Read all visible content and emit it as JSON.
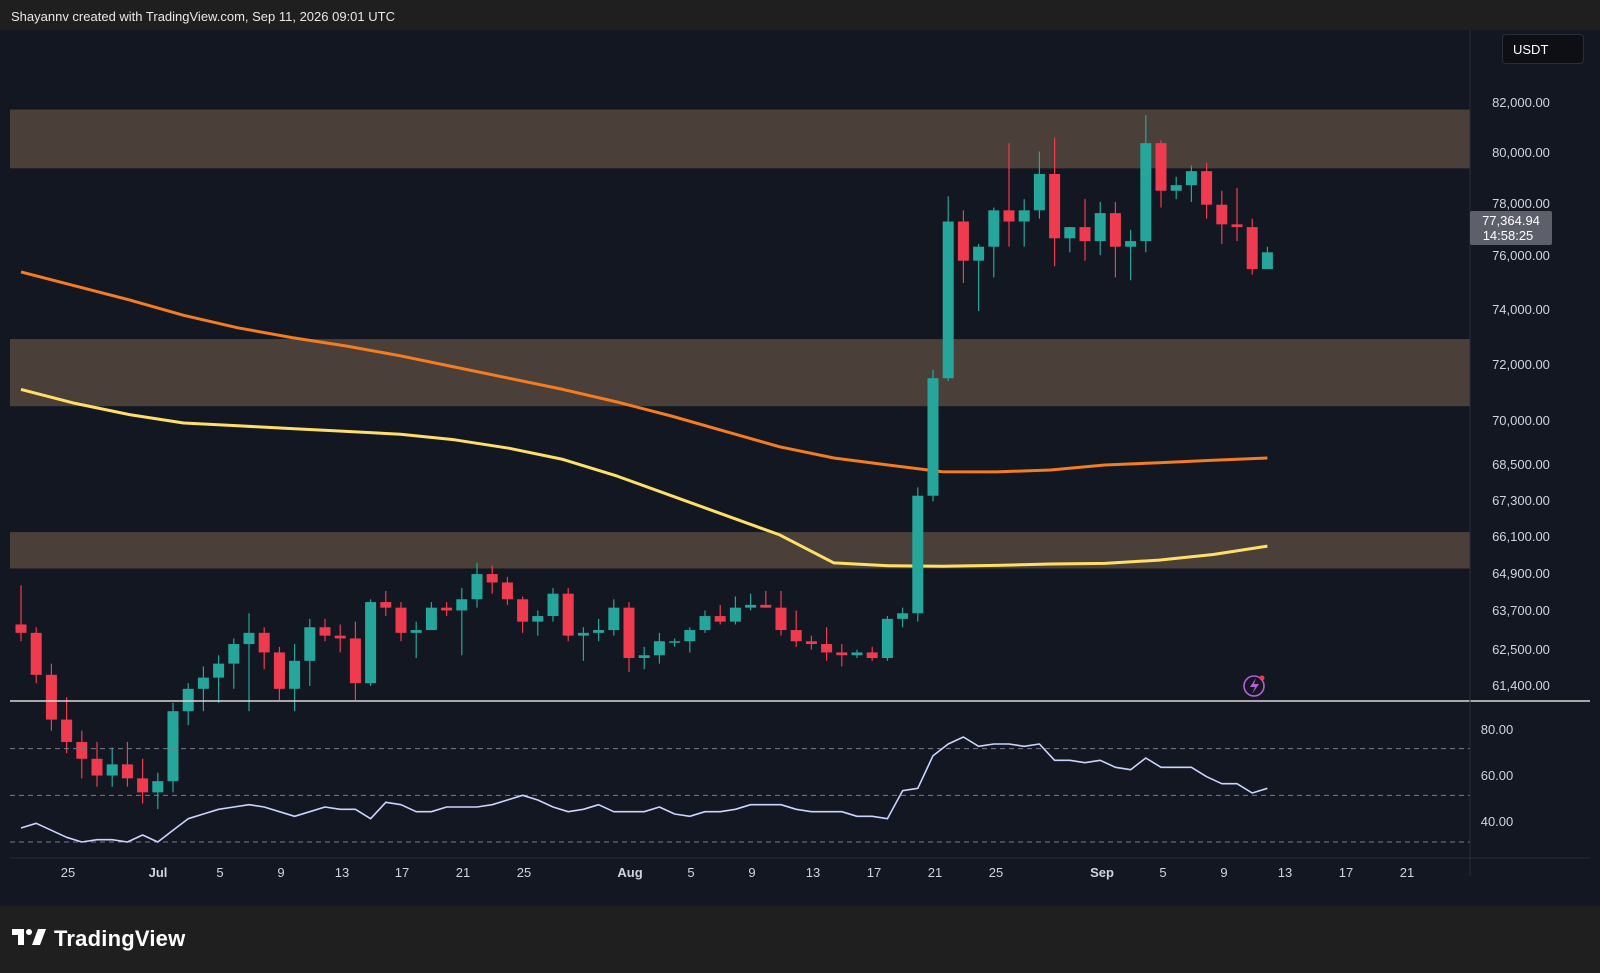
{
  "attribution": "Shayannv created with TradingView.com, Sep 11, 2026 09:01 UTC",
  "brand": "TradingView",
  "currency_label": "USDT",
  "last_price_label": "77,364.94",
  "countdown_label": "14:58:25",
  "colors": {
    "up": "#26a69a",
    "down": "#ef3b4f",
    "ma_orange": "#f57c1f",
    "ma_yellow": "#ffe066",
    "zone": "#4a4039",
    "rsi_line": "#c9d4ff",
    "background": "#131722"
  },
  "icons": [
    "tradingview-logo-icon",
    "lightning-alert-icon"
  ],
  "chart_data": [
    {
      "type": "candlestick",
      "title": "",
      "price_axis_ticks": [
        "82,000.00",
        "80,000.00",
        "78,000.00",
        "76,000.00",
        "74,000.00",
        "72,000.00",
        "70,000.00",
        "68,500.00",
        "67,300.00",
        "66,100.00",
        "64,900.00",
        "63,700.00",
        "62,500.00",
        "61,400.00"
      ],
      "time_axis_ticks": [
        "25",
        "Jul",
        "5",
        "9",
        "13",
        "17",
        "21",
        "25",
        "Aug",
        "5",
        "9",
        "13",
        "17",
        "21",
        "25",
        "Sep",
        "5",
        "9",
        "13",
        "17",
        "21"
      ],
      "candles": [
        {
          "o": 64100,
          "h": 65500,
          "l": 63500,
          "c": 63800
        },
        {
          "o": 63800,
          "h": 64000,
          "l": 62000,
          "c": 62300
        },
        {
          "o": 62300,
          "h": 62700,
          "l": 60300,
          "c": 60700
        },
        {
          "o": 60700,
          "h": 61500,
          "l": 59500,
          "c": 59900
        },
        {
          "o": 59900,
          "h": 60300,
          "l": 58600,
          "c": 59300
        },
        {
          "o": 59300,
          "h": 59900,
          "l": 58300,
          "c": 58700
        },
        {
          "o": 58700,
          "h": 59700,
          "l": 58300,
          "c": 59100
        },
        {
          "o": 59100,
          "h": 59900,
          "l": 58300,
          "c": 58600
        },
        {
          "o": 58600,
          "h": 59300,
          "l": 57700,
          "c": 58100
        },
        {
          "o": 58100,
          "h": 58800,
          "l": 57500,
          "c": 58500
        },
        {
          "o": 58500,
          "h": 61300,
          "l": 58100,
          "c": 61000
        },
        {
          "o": 61000,
          "h": 62000,
          "l": 60500,
          "c": 61800
        },
        {
          "o": 61800,
          "h": 62600,
          "l": 61000,
          "c": 62200
        },
        {
          "o": 62200,
          "h": 63000,
          "l": 61300,
          "c": 62700
        },
        {
          "o": 62700,
          "h": 63600,
          "l": 61800,
          "c": 63400
        },
        {
          "o": 63400,
          "h": 64500,
          "l": 61000,
          "c": 63800
        },
        {
          "o": 63800,
          "h": 64000,
          "l": 62500,
          "c": 63100
        },
        {
          "o": 63100,
          "h": 63300,
          "l": 61400,
          "c": 61800
        },
        {
          "o": 61800,
          "h": 63400,
          "l": 61000,
          "c": 62800
        },
        {
          "o": 62800,
          "h": 64300,
          "l": 61900,
          "c": 64000
        },
        {
          "o": 64000,
          "h": 64300,
          "l": 63500,
          "c": 63700
        },
        {
          "o": 63700,
          "h": 64100,
          "l": 63100,
          "c": 63600
        },
        {
          "o": 63600,
          "h": 64200,
          "l": 61400,
          "c": 62000
        },
        {
          "o": 62000,
          "h": 65000,
          "l": 61900,
          "c": 64900
        },
        {
          "o": 64900,
          "h": 65300,
          "l": 64400,
          "c": 64700
        },
        {
          "o": 64700,
          "h": 64900,
          "l": 63500,
          "c": 63800
        },
        {
          "o": 63800,
          "h": 64200,
          "l": 62900,
          "c": 63900
        },
        {
          "o": 63900,
          "h": 64900,
          "l": 63900,
          "c": 64700
        },
        {
          "o": 64700,
          "h": 64900,
          "l": 64400,
          "c": 64600
        },
        {
          "o": 64600,
          "h": 65400,
          "l": 63000,
          "c": 65000
        },
        {
          "o": 65000,
          "h": 66300,
          "l": 64700,
          "c": 65900
        },
        {
          "o": 65900,
          "h": 66200,
          "l": 65200,
          "c": 65600
        },
        {
          "o": 65600,
          "h": 65800,
          "l": 64800,
          "c": 65000
        },
        {
          "o": 65000,
          "h": 65100,
          "l": 63800,
          "c": 64200
        },
        {
          "o": 64200,
          "h": 64600,
          "l": 63700,
          "c": 64400
        },
        {
          "o": 64400,
          "h": 65400,
          "l": 64200,
          "c": 65200
        },
        {
          "o": 65200,
          "h": 65400,
          "l": 63500,
          "c": 63700
        },
        {
          "o": 63700,
          "h": 64000,
          "l": 62800,
          "c": 63800
        },
        {
          "o": 63800,
          "h": 64300,
          "l": 63500,
          "c": 63900
        },
        {
          "o": 63900,
          "h": 65000,
          "l": 63700,
          "c": 64700
        },
        {
          "o": 64700,
          "h": 64900,
          "l": 62400,
          "c": 62900
        },
        {
          "o": 62900,
          "h": 63300,
          "l": 62500,
          "c": 63000
        },
        {
          "o": 63000,
          "h": 63800,
          "l": 62700,
          "c": 63500
        },
        {
          "o": 63500,
          "h": 63600,
          "l": 63300,
          "c": 63500
        },
        {
          "o": 63500,
          "h": 64000,
          "l": 63100,
          "c": 63900
        },
        {
          "o": 63900,
          "h": 64600,
          "l": 63800,
          "c": 64400
        },
        {
          "o": 64400,
          "h": 64800,
          "l": 64100,
          "c": 64200
        },
        {
          "o": 64200,
          "h": 65100,
          "l": 64100,
          "c": 64700
        },
        {
          "o": 64700,
          "h": 65200,
          "l": 64600,
          "c": 64800
        },
        {
          "o": 64800,
          "h": 65300,
          "l": 64700,
          "c": 64700
        },
        {
          "o": 64700,
          "h": 65300,
          "l": 63700,
          "c": 63900
        },
        {
          "o": 63900,
          "h": 64600,
          "l": 63300,
          "c": 63500
        },
        {
          "o": 63500,
          "h": 63700,
          "l": 63200,
          "c": 63400
        },
        {
          "o": 63400,
          "h": 64000,
          "l": 62800,
          "c": 63100
        },
        {
          "o": 63100,
          "h": 63400,
          "l": 62600,
          "c": 63000
        },
        {
          "o": 63000,
          "h": 63200,
          "l": 62900,
          "c": 63100
        },
        {
          "o": 63100,
          "h": 63300,
          "l": 62800,
          "c": 62900
        },
        {
          "o": 62900,
          "h": 64400,
          "l": 62800,
          "c": 64300
        },
        {
          "o": 64300,
          "h": 64700,
          "l": 64000,
          "c": 64500
        },
        {
          "o": 64500,
          "h": 69000,
          "l": 64200,
          "c": 68700
        },
        {
          "o": 68700,
          "h": 73200,
          "l": 68500,
          "c": 72900
        },
        {
          "o": 72900,
          "h": 79400,
          "l": 72800,
          "c": 78500
        },
        {
          "o": 78500,
          "h": 78900,
          "l": 76300,
          "c": 77100
        },
        {
          "o": 77100,
          "h": 77700,
          "l": 75300,
          "c": 77600
        },
        {
          "o": 77600,
          "h": 79000,
          "l": 76500,
          "c": 78900
        },
        {
          "o": 78900,
          "h": 81300,
          "l": 77600,
          "c": 78500
        },
        {
          "o": 78500,
          "h": 79300,
          "l": 77600,
          "c": 78900
        },
        {
          "o": 78900,
          "h": 81000,
          "l": 78600,
          "c": 80200
        },
        {
          "o": 80200,
          "h": 81500,
          "l": 76900,
          "c": 77900
        },
        {
          "o": 77900,
          "h": 78300,
          "l": 77400,
          "c": 78300
        },
        {
          "o": 78300,
          "h": 79300,
          "l": 77100,
          "c": 77800
        },
        {
          "o": 77800,
          "h": 79200,
          "l": 77300,
          "c": 78800
        },
        {
          "o": 78800,
          "h": 79200,
          "l": 76500,
          "c": 77600
        },
        {
          "o": 77600,
          "h": 78200,
          "l": 76400,
          "c": 77800
        },
        {
          "o": 77800,
          "h": 82300,
          "l": 77400,
          "c": 81300
        },
        {
          "o": 81300,
          "h": 81400,
          "l": 79000,
          "c": 79600
        },
        {
          "o": 79600,
          "h": 80100,
          "l": 79300,
          "c": 79800
        },
        {
          "o": 79800,
          "h": 80500,
          "l": 79200,
          "c": 80300
        },
        {
          "o": 80300,
          "h": 80600,
          "l": 78600,
          "c": 79100
        },
        {
          "o": 79100,
          "h": 79600,
          "l": 77700,
          "c": 78400
        },
        {
          "o": 78400,
          "h": 79700,
          "l": 77800,
          "c": 78300
        },
        {
          "o": 78300,
          "h": 78600,
          "l": 76600,
          "c": 76800
        },
        {
          "o": 76800,
          "h": 77600,
          "l": 76800,
          "c": 77400
        }
      ],
      "moving_averages": [
        {
          "name": "",
          "color": "#f57c1f",
          "values": [
            76700,
            76200,
            75700,
            75150,
            74700,
            74350,
            74050,
            73700,
            73300,
            72900,
            72500,
            72050,
            71550,
            71000,
            70450,
            70050,
            69800,
            69560,
            69550,
            69620,
            69800,
            69880,
            69970,
            70050
          ]
        },
        {
          "name": "",
          "color": "#ffe066",
          "values": [
            72500,
            72000,
            71600,
            71300,
            71200,
            71100,
            71000,
            70900,
            70700,
            70400,
            70000,
            69400,
            68700,
            68000,
            67300,
            66300,
            66200,
            66180,
            66210,
            66260,
            66280,
            66400,
            66600,
            66900
          ]
        },
        {
          "name": "",
          "color": "#ffe066",
          "values": [
            72500,
            72000,
            71600,
            71300,
            71200,
            71100,
            71000,
            70900,
            70700,
            70400,
            70000,
            69400,
            68700,
            68000,
            67300,
            66300,
            66200,
            66180,
            66210,
            66260,
            66280,
            66400,
            66600,
            66900
          ]
        }
      ],
      "zones": [
        {
          "low": 80400,
          "high": 82500
        },
        {
          "low": 71900,
          "high": 74300
        },
        {
          "low": 66100,
          "high": 67400
        }
      ],
      "price_range": [
        61400,
        83200
      ]
    },
    {
      "type": "line",
      "title": "",
      "y_axis_ticks": [
        "80.00",
        "60.00",
        "40.00"
      ],
      "ylim": [
        24,
        90
      ],
      "levels": [
        70,
        50,
        30
      ],
      "values": [
        36,
        38,
        35,
        32,
        30,
        31,
        31,
        30,
        33,
        30,
        35,
        40,
        42,
        44,
        45,
        46,
        45,
        43,
        41,
        43,
        45,
        44,
        44,
        40,
        47,
        46,
        43,
        43,
        45,
        45,
        45,
        46,
        48,
        50,
        48,
        45,
        43,
        44,
        46,
        43,
        43,
        43,
        45,
        42,
        41,
        43,
        43,
        44,
        46,
        46,
        46,
        44,
        43,
        43,
        43,
        41,
        41,
        40,
        52,
        53,
        67,
        72,
        75,
        71,
        72,
        72,
        71,
        72,
        65,
        65,
        64,
        65,
        62,
        61,
        66,
        62,
        62,
        62,
        58,
        55,
        55,
        51,
        53
      ]
    }
  ]
}
